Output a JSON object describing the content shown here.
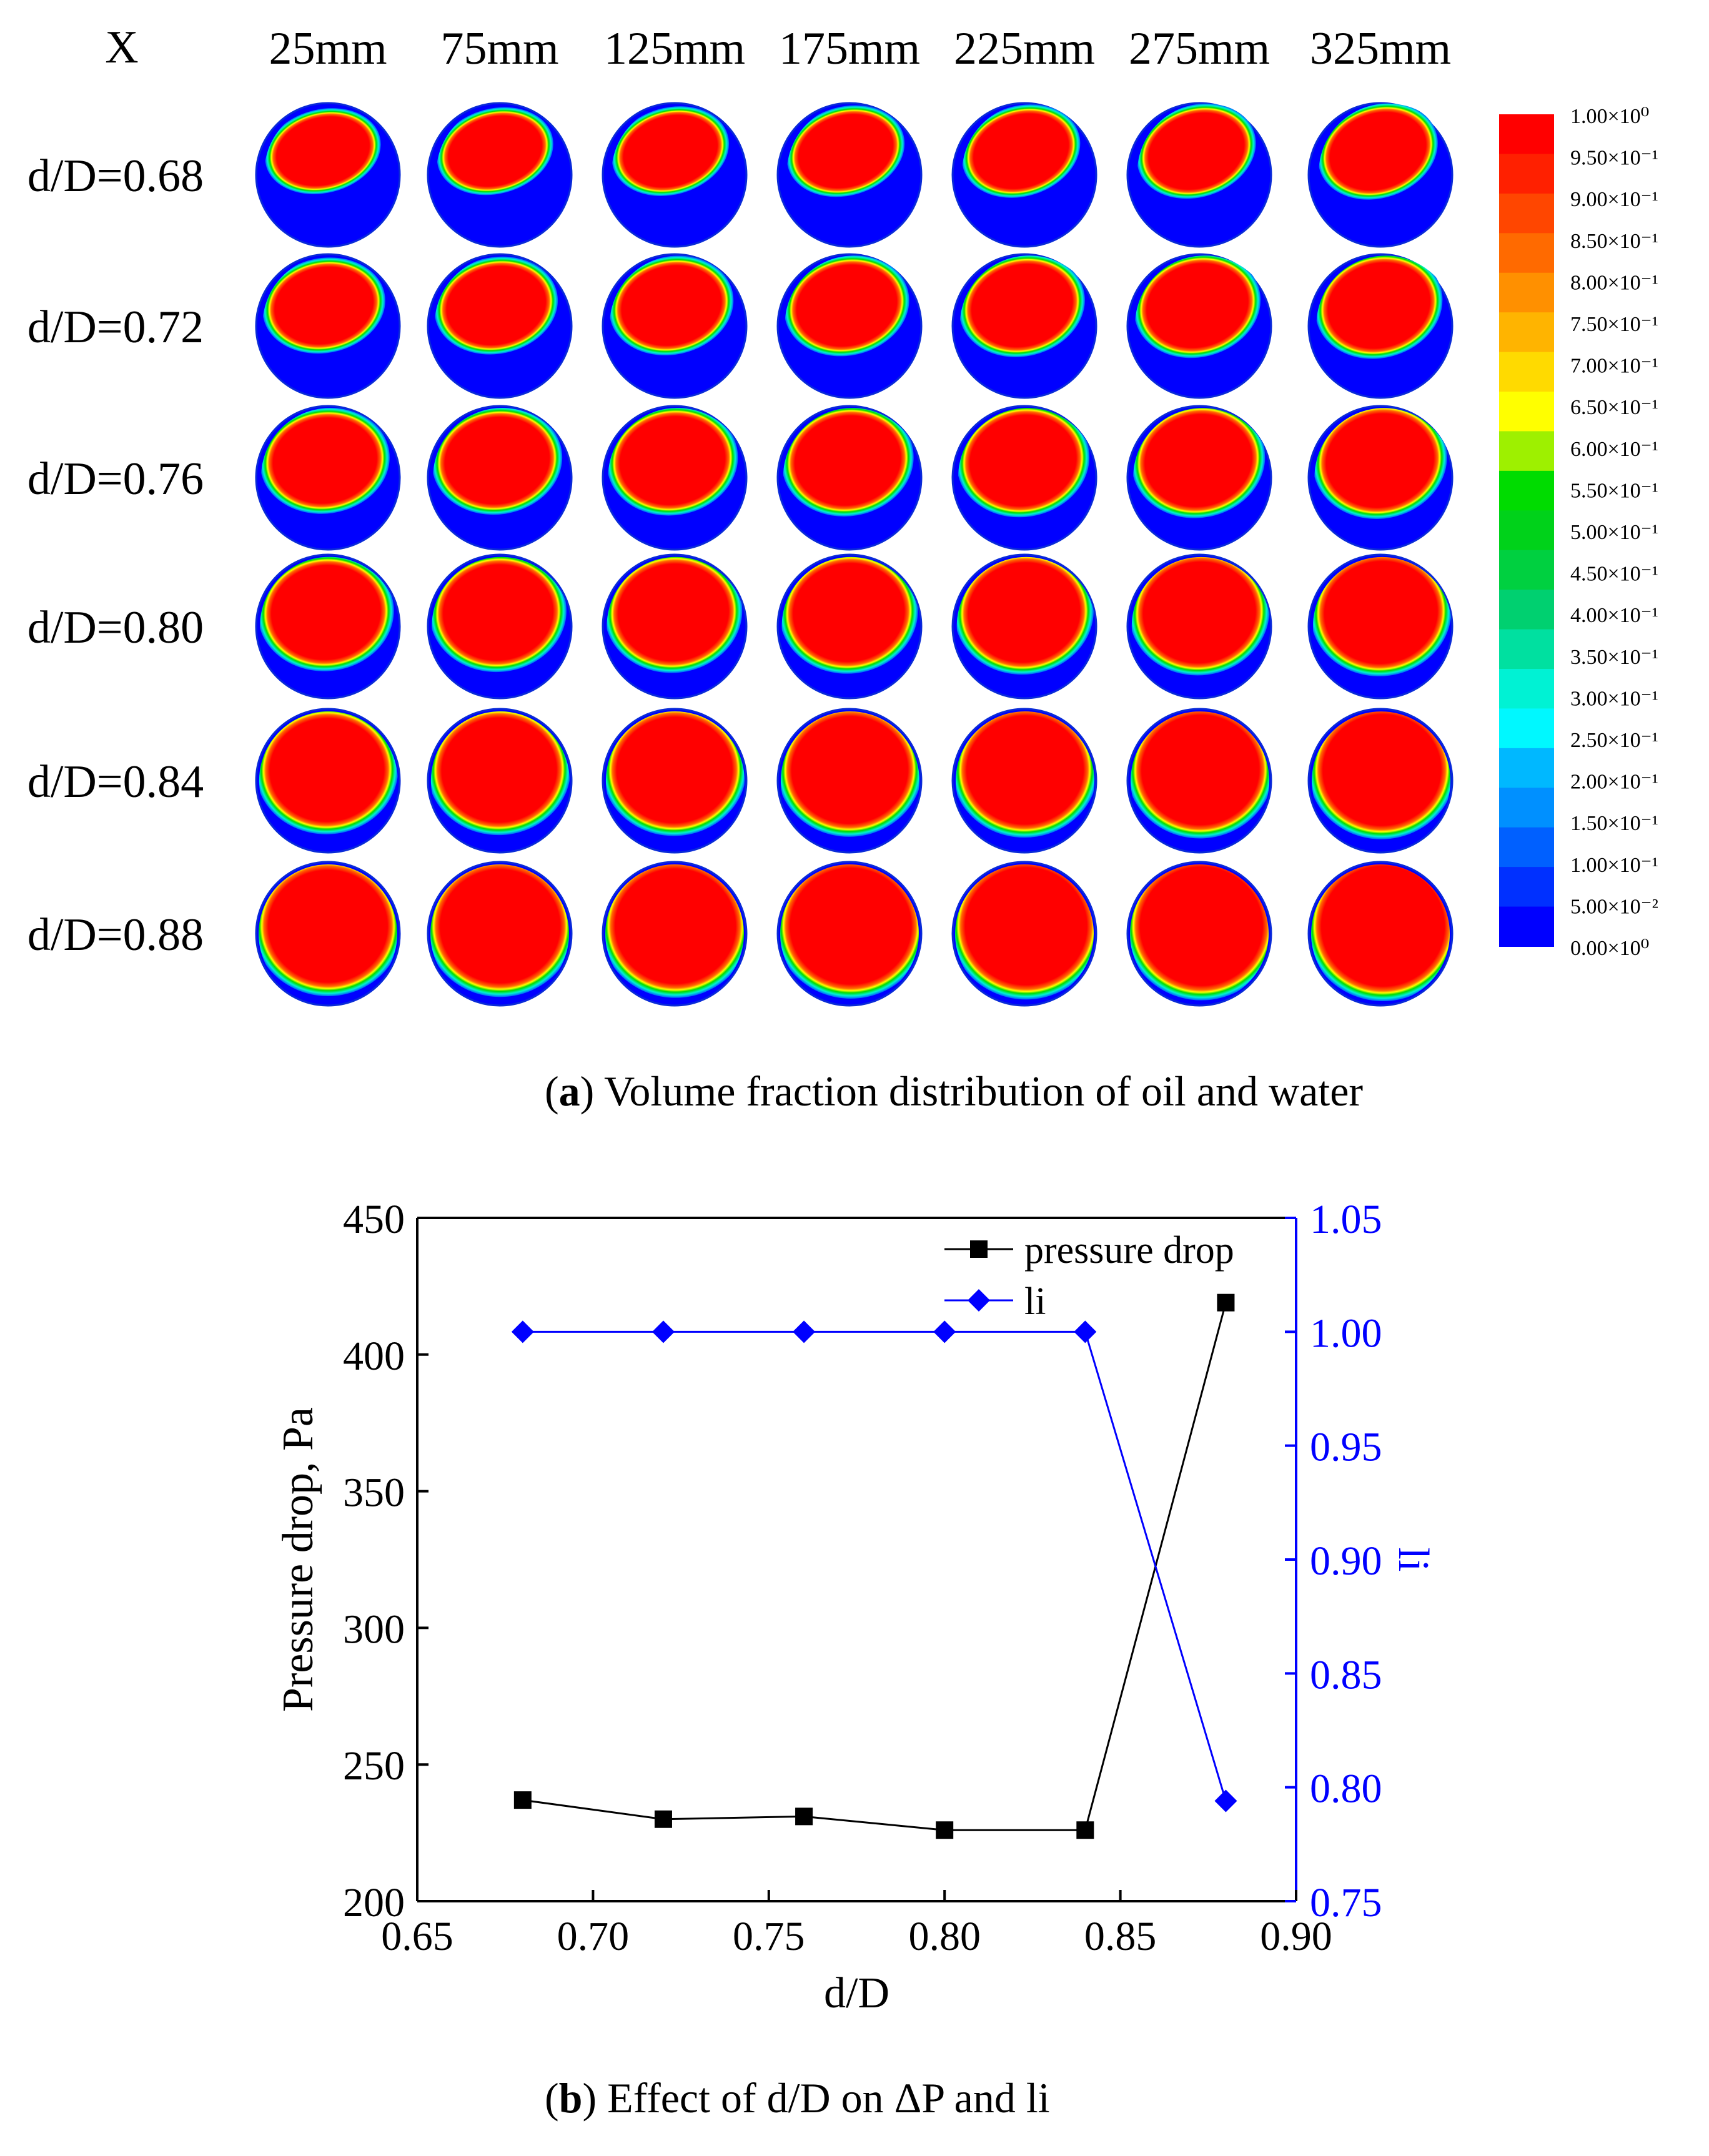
{
  "figure_a": {
    "x_label": "X",
    "columns": [
      "25mm",
      "75mm",
      "125mm",
      "175mm",
      "225mm",
      "275mm",
      "325mm"
    ],
    "rows": [
      "d/D=0.68",
      "d/D=0.72",
      "d/D=0.76",
      "d/D=0.80",
      "d/D=0.84",
      "d/D=0.88"
    ],
    "colorbar": {
      "labels": [
        "1.00×10⁰",
        "9.50×10⁻¹",
        "9.00×10⁻¹",
        "8.50×10⁻¹",
        "8.00×10⁻¹",
        "7.50×10⁻¹",
        "7.00×10⁻¹",
        "6.50×10⁻¹",
        "6.00×10⁻¹",
        "5.50×10⁻¹",
        "5.00×10⁻¹",
        "4.50×10⁻¹",
        "4.00×10⁻¹",
        "3.50×10⁻¹",
        "3.00×10⁻¹",
        "2.50×10⁻¹",
        "2.00×10⁻¹",
        "1.50×10⁻¹",
        "1.00×10⁻¹",
        "5.00×10⁻²",
        "0.00×10⁰"
      ],
      "colors": [
        "#ff0000",
        "#ff2000",
        "#ff4600",
        "#ff6a00",
        "#ff9000",
        "#ffb400",
        "#ffda00",
        "#ffff00",
        "#9ef000",
        "#00dc00",
        "#00d21a",
        "#00d040",
        "#00d070",
        "#00e0a0",
        "#00f2d4",
        "#00f8ff",
        "#00b8ff",
        "#0090ff",
        "#0060ff",
        "#0030ff",
        "#0000ff"
      ]
    },
    "caption": {
      "bold": "a",
      "text": "Volume fraction distribution of oil and water"
    }
  },
  "chart_data": {
    "type": "line",
    "x": [
      0.68,
      0.72,
      0.76,
      0.8,
      0.84,
      0.88
    ],
    "series": [
      {
        "name": "pressure drop",
        "axis": "left",
        "color": "#000000",
        "marker": "square",
        "values": [
          237,
          230,
          231,
          226,
          226,
          419
        ]
      },
      {
        "name": "li",
        "axis": "right",
        "color": "#0000ff",
        "marker": "diamond",
        "values": [
          1.0,
          1.0,
          1.0,
          1.0,
          1.0,
          0.794
        ]
      }
    ],
    "xlabel": "d/D",
    "ylabel": "Pressure drop, Pa",
    "y2label": "li",
    "xlim": [
      0.65,
      0.9
    ],
    "ylim": [
      200,
      450
    ],
    "y2lim": [
      0.75,
      1.05
    ],
    "xticks": [
      "0.65",
      "0.70",
      "0.75",
      "0.80",
      "0.85",
      "0.90"
    ],
    "yticks": [
      "200",
      "250",
      "300",
      "350",
      "400",
      "450"
    ],
    "y2ticks": [
      "0.75",
      "0.80",
      "0.85",
      "0.90",
      "0.95",
      "1.00",
      "1.05"
    ],
    "legend": [
      "pressure drop",
      "li"
    ],
    "legend_position": "top-right",
    "grid": false
  },
  "caption_b": {
    "bold": "b",
    "text": "Effect of d/D on ΔP and li"
  }
}
